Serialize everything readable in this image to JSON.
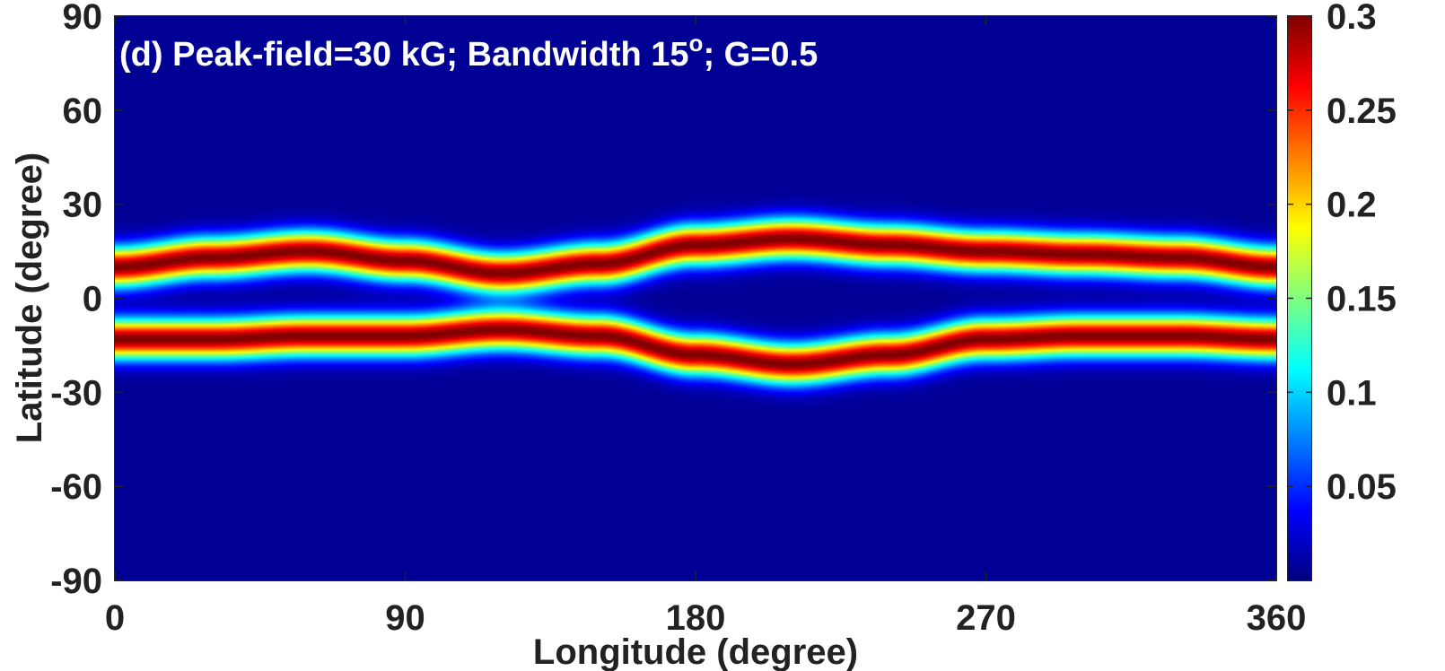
{
  "chart_data": {
    "type": "heatmap",
    "title_annotation": {
      "prefix": "(d) Peak-field=30 kG; Bandwidth 15",
      "superscript": "o",
      "suffix": "; G=0.5"
    },
    "xlabel": "Longitude (degree)",
    "ylabel": "Latitude (degree)",
    "xlim": [
      0,
      360
    ],
    "ylim": [
      -90,
      90
    ],
    "xticks": [
      0,
      90,
      180,
      270,
      360
    ],
    "yticks": [
      90,
      60,
      30,
      0,
      -30,
      -60,
      -90
    ],
    "colorbar": {
      "colormap": "jet",
      "range": [
        0,
        0.3
      ],
      "ticks": [
        "0.3",
        "0.25",
        "0.2",
        "0.15",
        "0.1",
        "0.05"
      ],
      "tick_values": [
        0.3,
        0.25,
        0.2,
        0.15,
        0.1,
        0.05
      ]
    },
    "bands": {
      "peak_value": 0.3,
      "half_width_deg": 7,
      "north_band_center_lat": [
        {
          "lon": 0,
          "lat": 10
        },
        {
          "lon": 30,
          "lat": 13
        },
        {
          "lon": 60,
          "lat": 15
        },
        {
          "lon": 90,
          "lat": 12
        },
        {
          "lon": 120,
          "lat": 8
        },
        {
          "lon": 150,
          "lat": 11
        },
        {
          "lon": 180,
          "lat": 17
        },
        {
          "lon": 210,
          "lat": 19
        },
        {
          "lon": 240,
          "lat": 17
        },
        {
          "lon": 270,
          "lat": 15
        },
        {
          "lon": 300,
          "lat": 14
        },
        {
          "lon": 330,
          "lat": 13
        },
        {
          "lon": 360,
          "lat": 10
        }
      ],
      "south_band_center_lat": [
        {
          "lon": 0,
          "lat": -13
        },
        {
          "lon": 30,
          "lat": -13
        },
        {
          "lon": 60,
          "lat": -12
        },
        {
          "lon": 90,
          "lat": -12
        },
        {
          "lon": 120,
          "lat": -10
        },
        {
          "lon": 150,
          "lat": -12
        },
        {
          "lon": 180,
          "lat": -18
        },
        {
          "lon": 210,
          "lat": -21
        },
        {
          "lon": 240,
          "lat": -18
        },
        {
          "lon": 270,
          "lat": -13
        },
        {
          "lon": 300,
          "lat": -12
        },
        {
          "lon": 330,
          "lat": -12
        },
        {
          "lon": 360,
          "lat": -13
        }
      ]
    }
  }
}
